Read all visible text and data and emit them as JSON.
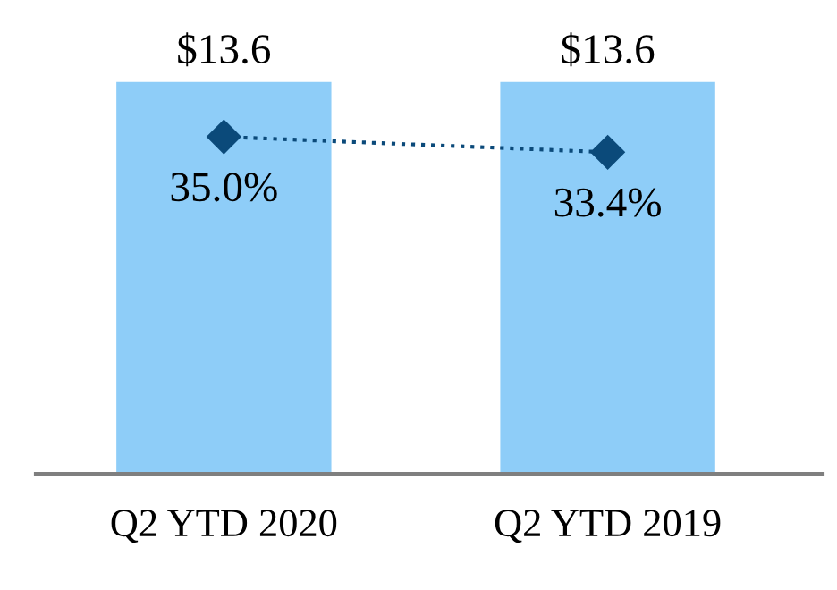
{
  "chart_data": {
    "type": "bar",
    "categories": [
      "Q2 YTD 2020",
      "Q2 YTD 2019"
    ],
    "series": [
      {
        "color": "#8ecdf8",
        "values": [
          13.6,
          13.6
        ],
        "value_labels": [
          "$13.6",
          "$13.6"
        ]
      },
      {
        "type": "line",
        "axis": "y2",
        "color": "#0b4a7a",
        "values": [
          35.0,
          33.4
        ],
        "value_labels": [
          "35.0%",
          "33.4%"
        ],
        "marker": "diamond",
        "line_style": "dotted"
      }
    ],
    "tick_labels": "x",
    "grid": false
  }
}
